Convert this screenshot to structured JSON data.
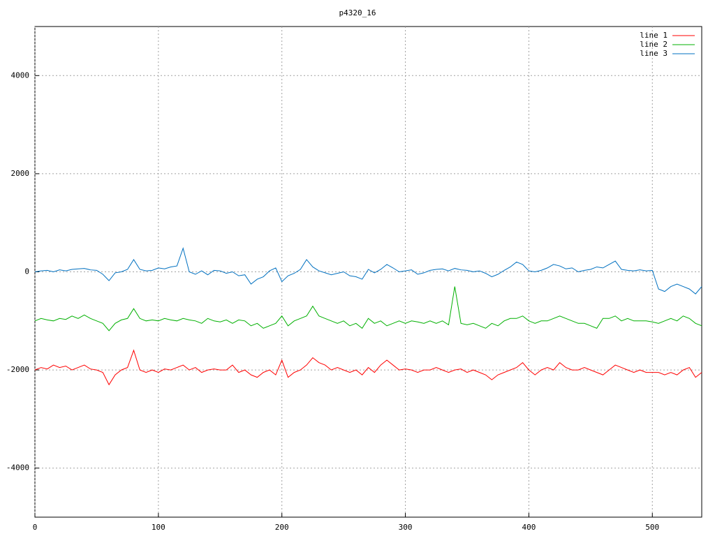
{
  "chart_data": {
    "type": "line",
    "title": "p4320_16",
    "x": [
      0,
      5,
      10,
      15,
      20,
      25,
      30,
      35,
      40,
      45,
      50,
      55,
      60,
      65,
      70,
      75,
      80,
      85,
      90,
      95,
      100,
      105,
      110,
      115,
      120,
      125,
      130,
      135,
      140,
      145,
      150,
      155,
      160,
      165,
      170,
      175,
      180,
      185,
      190,
      195,
      200,
      205,
      210,
      215,
      220,
      225,
      230,
      235,
      240,
      245,
      250,
      255,
      260,
      265,
      270,
      275,
      280,
      285,
      290,
      295,
      300,
      305,
      310,
      315,
      320,
      325,
      330,
      335,
      340,
      345,
      350,
      355,
      360,
      365,
      370,
      375,
      380,
      385,
      390,
      395,
      400,
      405,
      410,
      415,
      420,
      425,
      430,
      435,
      440,
      445,
      450,
      455,
      460,
      465,
      470,
      475,
      480,
      485,
      490,
      495,
      500,
      505,
      510,
      515,
      520,
      525,
      530,
      535,
      540
    ],
    "series": [
      {
        "name": "line 1",
        "color": "#ff0000",
        "values": [
          -2000,
          -1950,
          -1980,
          -1900,
          -1950,
          -1920,
          -2000,
          -1950,
          -1900,
          -1980,
          -2000,
          -2050,
          -2300,
          -2100,
          -2000,
          -1950,
          -1600,
          -2000,
          -2050,
          -2000,
          -2050,
          -1980,
          -2000,
          -1950,
          -1900,
          -2000,
          -1950,
          -2050,
          -2000,
          -1980,
          -2000,
          -2000,
          -1900,
          -2050,
          -2000,
          -2100,
          -2150,
          -2050,
          -2000,
          -2100,
          -1800,
          -2150,
          -2050,
          -2000,
          -1900,
          -1750,
          -1850,
          -1900,
          -2000,
          -1950,
          -2000,
          -2050,
          -2000,
          -2100,
          -1950,
          -2050,
          -1900,
          -1800,
          -1900,
          -2000,
          -1980,
          -2000,
          -2050,
          -2000,
          -2000,
          -1950,
          -2000,
          -2050,
          -2000,
          -1980,
          -2050,
          -2000,
          -2050,
          -2100,
          -2200,
          -2100,
          -2050,
          -2000,
          -1950,
          -1850,
          -2000,
          -2100,
          -2000,
          -1950,
          -2000,
          -1850,
          -1950,
          -2000,
          -2000,
          -1950,
          -2000,
          -2050,
          -2100,
          -2000,
          -1900,
          -1950,
          -2000,
          -2050,
          -2000,
          -2050,
          -2050,
          -2050,
          -2100,
          -2050,
          -2100,
          -2000,
          -1950,
          -2150,
          -2050
        ]
      },
      {
        "name": "line 2",
        "color": "#00b000",
        "values": [
          -1000,
          -950,
          -980,
          -1000,
          -950,
          -970,
          -900,
          -950,
          -880,
          -950,
          -1000,
          -1050,
          -1200,
          -1050,
          -980,
          -950,
          -750,
          -950,
          -1000,
          -980,
          -1000,
          -950,
          -980,
          -1000,
          -950,
          -980,
          -1000,
          -1050,
          -950,
          -1000,
          -1020,
          -980,
          -1050,
          -980,
          -1000,
          -1100,
          -1050,
          -1150,
          -1100,
          -1050,
          -900,
          -1100,
          -1000,
          -950,
          -900,
          -700,
          -900,
          -950,
          -1000,
          -1050,
          -1000,
          -1100,
          -1050,
          -1150,
          -950,
          -1050,
          -1000,
          -1100,
          -1050,
          -1000,
          -1050,
          -1000,
          -1020,
          -1050,
          -1000,
          -1050,
          -1000,
          -1080,
          -300,
          -1050,
          -1080,
          -1050,
          -1100,
          -1150,
          -1050,
          -1100,
          -1000,
          -950,
          -950,
          -900,
          -1000,
          -1050,
          -1000,
          -1000,
          -950,
          -900,
          -950,
          -1000,
          -1050,
          -1050,
          -1100,
          -1150,
          -950,
          -950,
          -900,
          -1000,
          -950,
          -1000,
          -1000,
          -1000,
          -1020,
          -1050,
          -1000,
          -950,
          -1000,
          -900,
          -950,
          -1050,
          -1100
        ]
      },
      {
        "name": "line 3",
        "color": "#0070c0",
        "values": [
          0,
          20,
          30,
          0,
          40,
          20,
          50,
          60,
          70,
          40,
          30,
          -50,
          -180,
          -20,
          0,
          50,
          250,
          50,
          20,
          30,
          80,
          60,
          100,
          120,
          480,
          0,
          -50,
          20,
          -60,
          30,
          20,
          -30,
          0,
          -80,
          -60,
          -250,
          -150,
          -100,
          20,
          80,
          -200,
          -80,
          -30,
          50,
          250,
          100,
          20,
          -20,
          -60,
          -30,
          0,
          -80,
          -100,
          -150,
          50,
          -20,
          50,
          150,
          80,
          0,
          20,
          40,
          -50,
          -20,
          30,
          50,
          60,
          20,
          70,
          40,
          30,
          0,
          20,
          -30,
          -100,
          -50,
          30,
          100,
          200,
          150,
          20,
          0,
          30,
          80,
          150,
          120,
          60,
          80,
          0,
          30,
          50,
          100,
          80,
          150,
          220,
          50,
          30,
          20,
          40,
          20,
          30,
          -350,
          -400,
          -300,
          -250,
          -300,
          -350,
          -450,
          -300
        ]
      }
    ],
    "xlim": [
      0,
      540
    ],
    "xticks": [
      0,
      100,
      200,
      300,
      400,
      500
    ],
    "ylim": [
      -5000,
      5000
    ],
    "yticks": [
      -4000,
      -2000,
      0,
      2000,
      4000
    ],
    "grid": true,
    "legend": "top-right"
  }
}
